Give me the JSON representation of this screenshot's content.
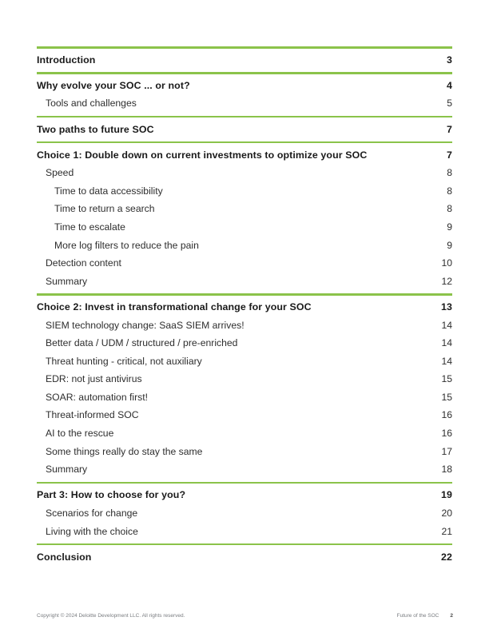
{
  "page": {
    "accent_color": "#8bc34a",
    "footer": {
      "copyright": "Copyright © 2024 Deloitte Development LLC. All rights reserved.",
      "doc_title": "Future of the SOC",
      "page_number": "2"
    }
  },
  "toc": {
    "entries": [
      {
        "label": "Introduction",
        "page": "3",
        "level": 1,
        "separator": true
      },
      {
        "label": "Why evolve your SOC ... or not?",
        "page": "4",
        "level": 1,
        "separator": true
      },
      {
        "label": "Tools and challenges",
        "page": "5",
        "level": 2,
        "separator": false
      },
      {
        "label": "Two paths to future SOC",
        "page": "7",
        "level": 1,
        "separator": true
      },
      {
        "label": "Choice 1: Double down on current investments to optimize your SOC",
        "page": "7",
        "level": 1,
        "separator": true
      },
      {
        "label": "Speed",
        "page": "8",
        "level": 2,
        "separator": false
      },
      {
        "label": "Time to data accessibility",
        "page": "8",
        "level": 3,
        "separator": false
      },
      {
        "label": "Time to return a search",
        "page": "8",
        "level": 3,
        "separator": false
      },
      {
        "label": "Time to escalate",
        "page": "9",
        "level": 3,
        "separator": false
      },
      {
        "label": "More log filters to reduce the pain",
        "page": "9",
        "level": 3,
        "separator": false
      },
      {
        "label": "Detection content",
        "page": "10",
        "level": 2,
        "separator": false
      },
      {
        "label": "Summary",
        "page": "12",
        "level": 2,
        "separator": false
      },
      {
        "label": "Choice 2: Invest in transformational change for your SOC",
        "page": "13",
        "level": 1,
        "separator": true
      },
      {
        "label": "SIEM technology change: SaaS SIEM arrives!",
        "page": "14",
        "level": 2,
        "separator": false
      },
      {
        "label": "Better data / UDM / structured / pre-enriched",
        "page": "14",
        "level": 2,
        "separator": false
      },
      {
        "label": "Threat hunting - critical, not auxiliary",
        "page": "14",
        "level": 2,
        "separator": false
      },
      {
        "label": "EDR: not just antivirus",
        "page": "15",
        "level": 2,
        "separator": false
      },
      {
        "label": "SOAR: automation first!",
        "page": "15",
        "level": 2,
        "separator": false
      },
      {
        "label": "Threat-informed SOC",
        "page": "16",
        "level": 2,
        "separator": false
      },
      {
        "label": "AI to the rescue",
        "page": "16",
        "level": 2,
        "separator": false
      },
      {
        "label": "Some things really do stay the same",
        "page": "17",
        "level": 2,
        "separator": false
      },
      {
        "label": "Summary",
        "page": "18",
        "level": 2,
        "separator": false
      },
      {
        "label": "Part 3: How to choose for you?",
        "page": "19",
        "level": 1,
        "separator": true
      },
      {
        "label": "Scenarios for change",
        "page": "20",
        "level": 2,
        "separator": false
      },
      {
        "label": "Living with the choice",
        "page": "21",
        "level": 2,
        "separator": false
      },
      {
        "label": "Conclusion",
        "page": "22",
        "level": 1,
        "separator": true
      }
    ]
  }
}
